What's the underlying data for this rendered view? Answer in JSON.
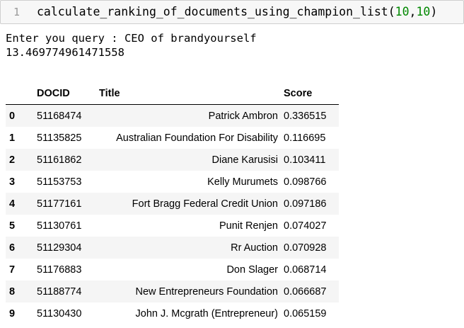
{
  "code_cell": {
    "line_number": "1",
    "function_name": "calculate_ranking_of_documents_using_champion_list",
    "open_paren": "(",
    "arg1": "10",
    "comma": ",",
    "arg2": "10",
    "close_paren": ")"
  },
  "output": {
    "prompt_line": "Enter you query : CEO of brandyourself",
    "elapsed_value": "13.469774961471558"
  },
  "dataframe": {
    "columns": {
      "index": "",
      "docid": "DOCID",
      "title": "Title",
      "score": "Score"
    },
    "rows": [
      {
        "index": "0",
        "docid": "51168474",
        "title": "Patrick Ambron",
        "score": "0.336515"
      },
      {
        "index": "1",
        "docid": "51135825",
        "title": "Australian Foundation For Disability",
        "score": "0.116695"
      },
      {
        "index": "2",
        "docid": "51161862",
        "title": "Diane Karusisi",
        "score": "0.103411"
      },
      {
        "index": "3",
        "docid": "51153753",
        "title": "Kelly Murumets",
        "score": "0.098766"
      },
      {
        "index": "4",
        "docid": "51177161",
        "title": "Fort Bragg Federal Credit Union",
        "score": "0.097186"
      },
      {
        "index": "5",
        "docid": "51130761",
        "title": "Punit Renjen",
        "score": "0.074027"
      },
      {
        "index": "6",
        "docid": "51129304",
        "title": "Rr Auction",
        "score": "0.070928"
      },
      {
        "index": "7",
        "docid": "51176883",
        "title": "Don Slager",
        "score": "0.068714"
      },
      {
        "index": "8",
        "docid": "51188774",
        "title": "New Entrepreneurs Foundation",
        "score": "0.066687"
      },
      {
        "index": "9",
        "docid": "51130430",
        "title": "John J. Mcgrath (Entrepreneur)",
        "score": "0.065159"
      }
    ]
  }
}
